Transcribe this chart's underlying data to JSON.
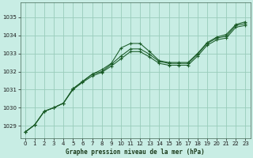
{
  "title": "Graphe pression niveau de la mer (hPa)",
  "bg_color": "#c8ede4",
  "grid_color": "#99ccbb",
  "line_color": "#1a5c28",
  "xlim": [
    -0.5,
    23.5
  ],
  "ylim": [
    1028.3,
    1035.8
  ],
  "yticks": [
    1029,
    1030,
    1031,
    1032,
    1033,
    1034,
    1035
  ],
  "xticks": [
    0,
    1,
    2,
    3,
    4,
    5,
    6,
    7,
    8,
    9,
    10,
    11,
    12,
    13,
    14,
    15,
    16,
    17,
    18,
    19,
    20,
    21,
    22,
    23
  ],
  "series1": [
    1028.65,
    1029.05,
    1029.8,
    1030.0,
    1030.25,
    1031.05,
    1031.45,
    1031.85,
    1032.1,
    1032.45,
    1033.3,
    1033.55,
    1033.55,
    1033.1,
    1032.6,
    1032.5,
    1032.5,
    1032.5,
    1033.0,
    1033.6,
    1033.9,
    1034.05,
    1034.6,
    1034.75
  ],
  "series2": [
    1028.65,
    1029.05,
    1029.8,
    1030.0,
    1030.25,
    1031.05,
    1031.45,
    1031.85,
    1032.0,
    1032.4,
    1032.85,
    1033.25,
    1033.25,
    1032.95,
    1032.55,
    1032.45,
    1032.45,
    1032.45,
    1032.95,
    1033.55,
    1033.85,
    1033.95,
    1034.55,
    1034.65
  ],
  "series3": [
    1028.65,
    1029.05,
    1029.8,
    1030.0,
    1030.25,
    1031.0,
    1031.4,
    1031.75,
    1031.95,
    1032.3,
    1032.7,
    1033.1,
    1033.1,
    1032.8,
    1032.45,
    1032.35,
    1032.35,
    1032.35,
    1032.85,
    1033.45,
    1033.75,
    1033.85,
    1034.45,
    1034.55
  ]
}
